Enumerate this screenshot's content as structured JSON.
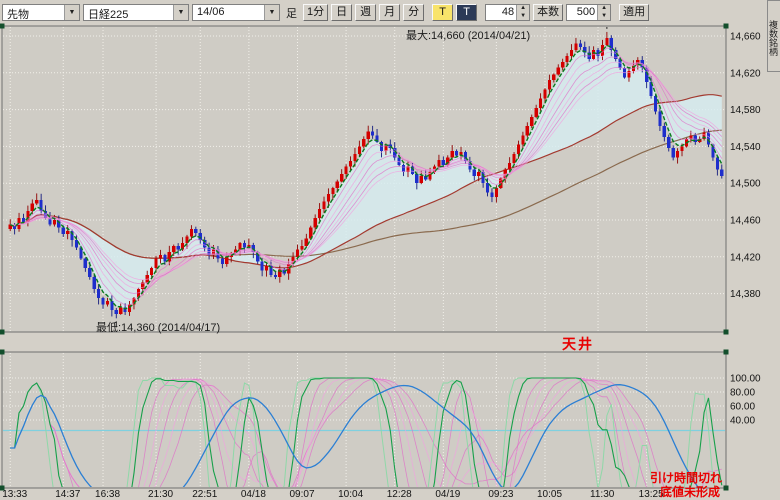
{
  "toolbar": {
    "market_value": "先物",
    "symbol_value": "日経225",
    "contract_value": "14/06",
    "timeframe_label": "足",
    "period_buttons": [
      "1分",
      "日",
      "週",
      "月",
      "分"
    ],
    "tick_yellow": "T",
    "tick_dark": "T",
    "interval_value": "48",
    "bars_button": "本数",
    "bars_value": "500",
    "apply_button": "適用",
    "side_tab": "複数銘柄",
    "dropdown_arrow": "▼",
    "spinner_up": "▲",
    "spinner_down": "▼"
  },
  "annotations": {
    "max_label": "最大:14,660 (2014/04/21)",
    "min_label": "最低:14,360 (2014/04/17)",
    "ceiling": "天井",
    "note_line1": "引け時間切れ",
    "note_line2": "底値未形成"
  },
  "colors": {
    "page_bg": "#d4d0c8",
    "chart_bg": "#cfccc5",
    "grid": "#f2f0ea",
    "panel_border": "#6f6f6f",
    "handle": "#134f2c",
    "up": "#d40000",
    "down": "#1e2ecc",
    "up_wick": "#8e0000",
    "down_wick": "#12197d",
    "ema_fast": "#0a7a1e",
    "ribbon": "#e06cc8",
    "ribbon2": "#f2a0e0",
    "sma_mid": "#a33a30",
    "sma_slow": "#8a6a4e",
    "cloud": "#d6edf1",
    "osc_green": "#17a04a",
    "osc_green2": "#8fd8a8",
    "osc_blue": "#2b7fd4",
    "baseline": "#7fd0df",
    "axis_text": "#141414",
    "annotation_red": "#e80000"
  },
  "chart_data": {
    "type": "candlestick",
    "interval_minutes": 48,
    "max": {
      "price": 14660,
      "date": "2014/04/21"
    },
    "min": {
      "price": 14360,
      "date": "2014/04/17"
    },
    "y_axis_ticks": [
      {
        "label": "14,660",
        "value": 14660
      },
      {
        "label": "14,620",
        "value": 14620
      },
      {
        "label": "14,580",
        "value": 14580
      },
      {
        "label": "14,540",
        "value": 14540
      },
      {
        "label": "14,500",
        "value": 14500
      },
      {
        "label": "14,460",
        "value": 14460
      },
      {
        "label": "14,420",
        "value": 14420
      },
      {
        "label": "14,380",
        "value": 14380
      }
    ],
    "x_ticks": [
      {
        "label": "13:33",
        "index": 0
      },
      {
        "label": "14:37",
        "index": 12
      },
      {
        "label": "16:38",
        "index": 21
      },
      {
        "label": "21:30",
        "index": 33
      },
      {
        "label": "22:51",
        "index": 43
      },
      {
        "label": "04/18",
        "index": 54
      },
      {
        "label": "09:07",
        "index": 65
      },
      {
        "label": "10:04",
        "index": 76
      },
      {
        "label": "12:28",
        "index": 87
      },
      {
        "label": "04/19",
        "index": 98
      },
      {
        "label": "09:23",
        "index": 110
      },
      {
        "label": "10:05",
        "index": 121
      },
      {
        "label": "11:30",
        "index": 133
      },
      {
        "label": "13:25",
        "index": 144
      }
    ],
    "open_first": 14450,
    "closes": [
      14455,
      14450,
      14462,
      14458,
      14470,
      14478,
      14482,
      14470,
      14462,
      14455,
      14460,
      14452,
      14445,
      14448,
      14438,
      14430,
      14418,
      14408,
      14398,
      14385,
      14375,
      14368,
      14372,
      14362,
      14358,
      14365,
      14360,
      14368,
      14375,
      14385,
      14392,
      14400,
      14408,
      14418,
      14422,
      14415,
      14425,
      14432,
      14428,
      14435,
      14442,
      14450,
      14446,
      14438,
      14430,
      14422,
      14428,
      14418,
      14412,
      14420,
      14424,
      14428,
      14435,
      14430,
      14433,
      14425,
      14415,
      14405,
      14410,
      14400,
      14398,
      14406,
      14402,
      14412,
      14420,
      14428,
      14432,
      14440,
      14452,
      14462,
      14472,
      14480,
      14488,
      14495,
      14502,
      14510,
      14518,
      14524,
      14532,
      14540,
      14548,
      14556,
      14552,
      14545,
      14535,
      14542,
      14538,
      14528,
      14520,
      14512,
      14518,
      14510,
      14500,
      14508,
      14504,
      14512,
      14518,
      14525,
      14520,
      14528,
      14535,
      14530,
      14534,
      14524,
      14515,
      14508,
      14512,
      14500,
      14490,
      14485,
      14495,
      14505,
      14515,
      14522,
      14532,
      14542,
      14552,
      14562,
      14572,
      14582,
      14592,
      14602,
      14612,
      14618,
      14626,
      14632,
      14638,
      14645,
      14652,
      14648,
      14642,
      14635,
      14645,
      14638,
      14650,
      14658,
      14645,
      14635,
      14625,
      14615,
      14622,
      14628,
      14634,
      14626,
      14610,
      14595,
      14578,
      14562,
      14550,
      14538,
      14528,
      14535,
      14540,
      14548,
      14552,
      14545,
      14548,
      14555,
      14542,
      14528,
      14515,
      14508
    ],
    "overlays": {
      "ema_fast_period": 4,
      "ribbon_periods": [
        6,
        9,
        12,
        15,
        18,
        21
      ],
      "sma_mid_period": 45,
      "sma_slow_period": 90
    },
    "oscillator": {
      "kind": "RCI",
      "green_period": 10,
      "green2_period": 7,
      "ribbon_periods": [
        14,
        17,
        20,
        23,
        26
      ],
      "blue_period": 34,
      "y_ticks": [
        100,
        80,
        60,
        40
      ],
      "y_tick_labels": [
        "100.00",
        "80.00",
        "60.00",
        "40.00"
      ],
      "baseline": 25
    }
  }
}
